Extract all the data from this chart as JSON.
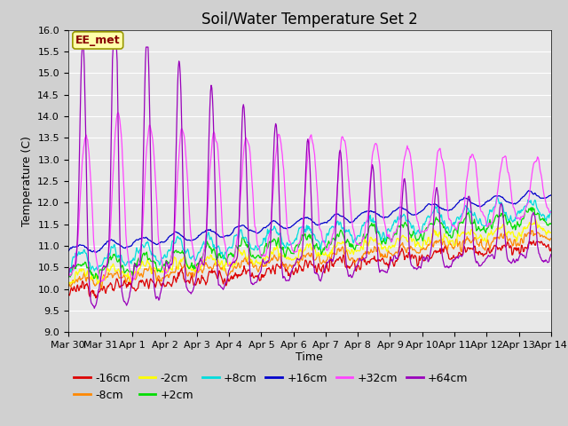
{
  "title": "Soil/Water Temperature Set 2",
  "xlabel": "Time",
  "ylabel": "Temperature (C)",
  "ylim": [
    9.0,
    16.0
  ],
  "yticks": [
    9.0,
    9.5,
    10.0,
    10.5,
    11.0,
    11.5,
    12.0,
    12.5,
    13.0,
    13.5,
    14.0,
    14.5,
    15.0,
    15.5,
    16.0
  ],
  "series": [
    {
      "label": "-16cm",
      "color": "#dd0000"
    },
    {
      "label": "-8cm",
      "color": "#ff8800"
    },
    {
      "label": "-2cm",
      "color": "#ffff00"
    },
    {
      "label": "+2cm",
      "color": "#00dd00"
    },
    {
      "label": "+8cm",
      "color": "#00dddd"
    },
    {
      "label": "+16cm",
      "color": "#0000cc"
    },
    {
      "label": "+32cm",
      "color": "#ff44ff"
    },
    {
      "label": "+64cm",
      "color": "#9900bb"
    }
  ],
  "xtick_labels": [
    "Mar 30",
    "Mar 31",
    "Apr 1",
    "Apr 2",
    "Apr 3",
    "Apr 4",
    "Apr 5",
    "Apr 6",
    "Apr 7",
    "Apr 8",
    "Apr 9",
    "Apr 10",
    "Apr 11",
    "Apr 12",
    "Apr 13",
    "Apr 14"
  ],
  "annotation_text": "EE_met",
  "annotation_bg": "#ffffaa",
  "annotation_border": "#999900",
  "fig_facecolor": "#d0d0d0",
  "ax_facecolor": "#e8e8e8",
  "grid_color": "#ffffff",
  "title_fontsize": 12,
  "axis_label_fontsize": 9,
  "tick_fontsize": 8,
  "legend_fontsize": 9
}
